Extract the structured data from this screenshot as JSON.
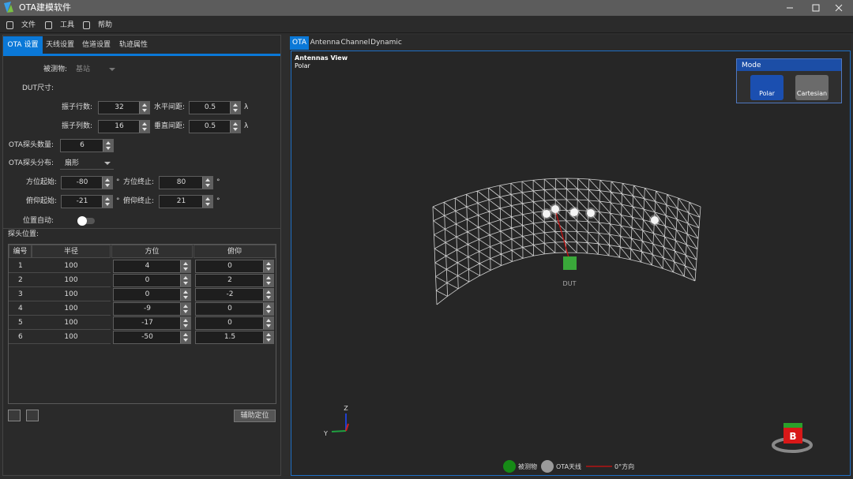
{
  "header": {
    "title": "OTA建模软件"
  },
  "menu": [
    "文件",
    "工具",
    "帮助"
  ],
  "left_tabs": [
    "OTA 设置",
    "天线设置",
    "信道设置",
    "轨迹属性"
  ],
  "form": {
    "fields": [
      {
        "label": "被测物:",
        "value": "基站"
      },
      {
        "label": "振子行数:",
        "value": 32
      },
      {
        "label": "水平间距:",
        "value": 0.5,
        "unit": "λ"
      },
      {
        "label": "振子列数:",
        "value": 16
      },
      {
        "label": "垂直间距:",
        "value": 0.5,
        "unit": "λ"
      },
      {
        "label": "OTA探头数量:",
        "value": 6
      },
      {
        "label": "OTA探头分布:",
        "value": "扇形"
      },
      {
        "label": "方位起始:",
        "value": -80,
        "unit": "°"
      },
      {
        "label": "方位终止:",
        "value": 80,
        "unit": "°"
      },
      {
        "label": "俯仰起始:",
        "value": -21,
        "unit": "°"
      },
      {
        "label": "俯仰终止:",
        "value": 21,
        "unit": "°"
      }
    ],
    "dut_size": "DUT尺寸:",
    "auto_position": "位置自动:",
    "probe_positions": "探头位置:"
  },
  "table": {
    "headers": [
      "编号",
      "半径",
      "方位",
      "俯仰"
    ],
    "rows": [
      [
        1,
        100,
        4,
        0
      ],
      [
        2,
        100,
        0,
        2
      ],
      [
        3,
        100,
        0,
        -2
      ],
      [
        4,
        100,
        -9,
        0
      ],
      [
        5,
        100,
        -17,
        0
      ],
      [
        6,
        100,
        -50,
        1.5
      ]
    ]
  },
  "assist_button": "辅助定位",
  "right_tabs": [
    "OTA",
    "Antenna",
    "Channel",
    "Dynamic"
  ],
  "view": {
    "title": "Antennas View",
    "subtitle": "Polar"
  },
  "mode": {
    "title": "Mode",
    "options": [
      "Polar",
      "Cartesian"
    ]
  },
  "scene": {
    "dut": "DUT",
    "axis_z": "Z",
    "axis_y": "Y",
    "cube": "B"
  },
  "legend": [
    "被测物",
    "OTA天线",
    "0°方向"
  ]
}
